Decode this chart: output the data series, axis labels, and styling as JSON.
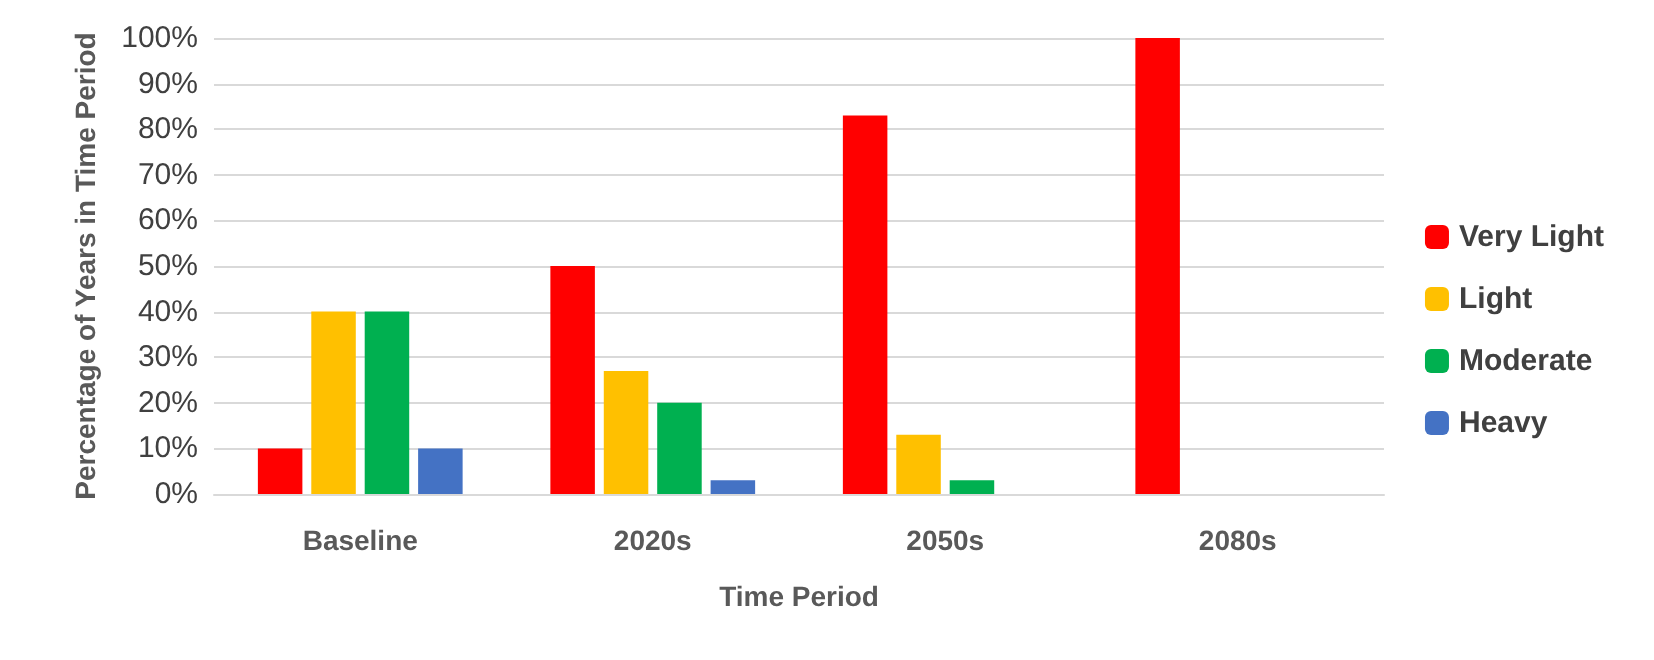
{
  "chart_data": {
    "type": "bar",
    "xlabel": "Time Period",
    "ylabel": "Percentage of Years in Time Period",
    "categories": [
      "Baseline",
      "2020s",
      "2050s",
      "2080s"
    ],
    "series": [
      {
        "name": "Very Light",
        "color": "#ff0000",
        "values": [
          10,
          50,
          83,
          100
        ]
      },
      {
        "name": "Light",
        "color": "#ffc000",
        "values": [
          40,
          27,
          13,
          0
        ]
      },
      {
        "name": "Moderate",
        "color": "#00b050",
        "values": [
          40,
          20,
          3,
          0
        ]
      },
      {
        "name": "Heavy",
        "color": "#4472c4",
        "values": [
          10,
          3,
          0,
          0
        ]
      }
    ],
    "ylim": [
      0,
      100
    ],
    "yticks": [
      {
        "value": 0,
        "label": "0%"
      },
      {
        "value": 10,
        "label": "10%"
      },
      {
        "value": 20,
        "label": "20%"
      },
      {
        "value": 30,
        "label": "30%"
      },
      {
        "value": 40,
        "label": "40%"
      },
      {
        "value": 50,
        "label": "50%"
      },
      {
        "value": 60,
        "label": "60%"
      },
      {
        "value": 70,
        "label": "70%"
      },
      {
        "value": 80,
        "label": "80%"
      },
      {
        "value": 90,
        "label": "90%"
      },
      {
        "value": 100,
        "label": "100%"
      }
    ],
    "grid": "y",
    "legend": "right"
  }
}
